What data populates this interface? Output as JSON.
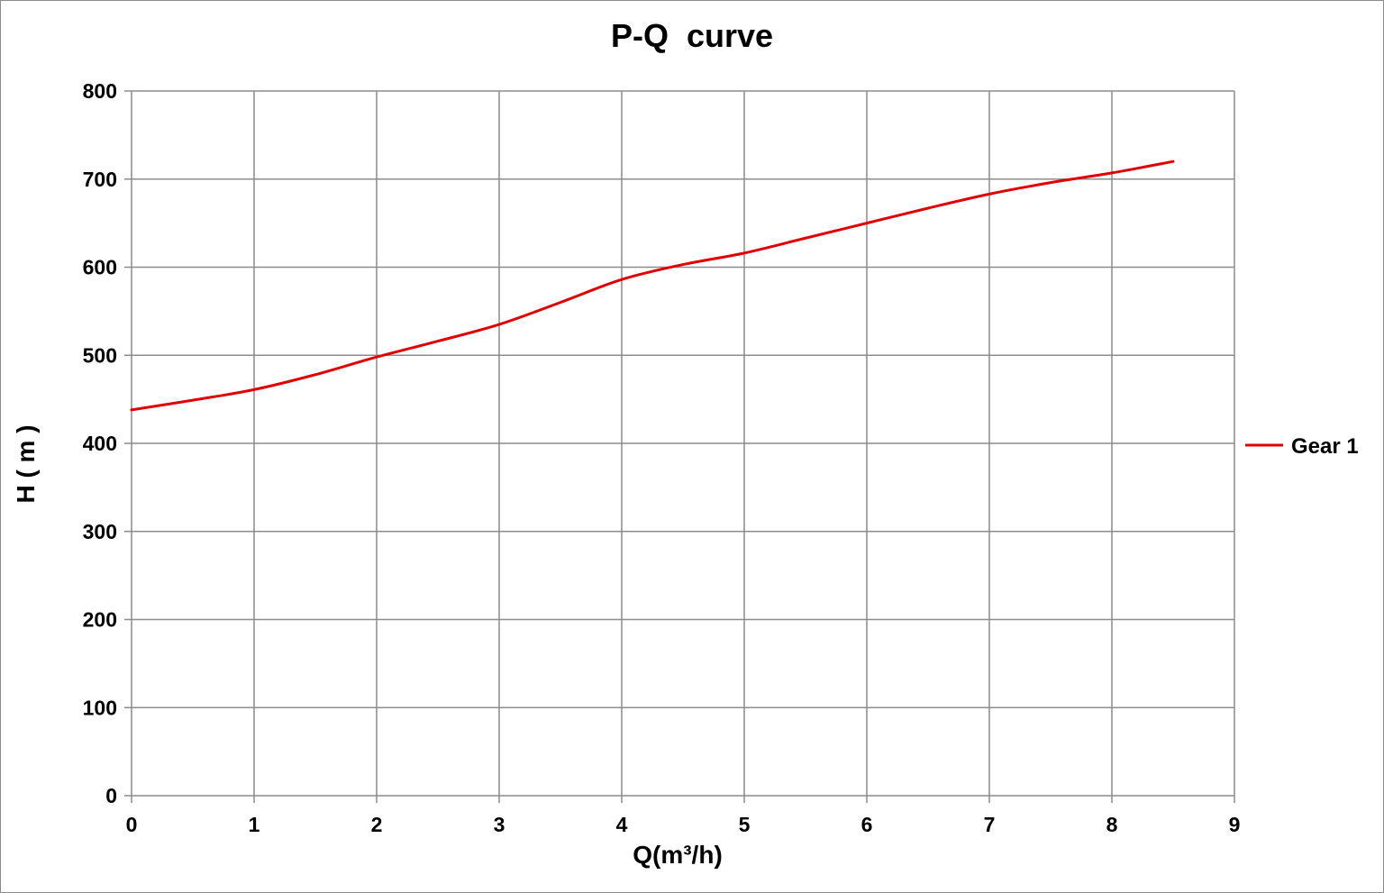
{
  "chart_data": {
    "type": "line",
    "title": "P-Q  curve",
    "xlabel": "Q(m³/h)",
    "ylabel": "H ( m )",
    "xlim": [
      0,
      9
    ],
    "ylim": [
      0,
      800
    ],
    "x_ticks": [
      "0",
      "1",
      "2",
      "3",
      "4",
      "5",
      "6",
      "7",
      "8",
      "9"
    ],
    "y_ticks": [
      "0",
      "100",
      "200",
      "300",
      "400",
      "500",
      "600",
      "700",
      "800"
    ],
    "grid": true,
    "legend_position": "right",
    "series": [
      {
        "name": "Gear 1",
        "color": "#e00000",
        "x": [
          0,
          0.5,
          1,
          1.5,
          2,
          2.5,
          3,
          3.5,
          4,
          4.5,
          5,
          5.5,
          6,
          6.5,
          7,
          7.5,
          8,
          8.5
        ],
        "y": [
          438,
          449,
          461,
          478,
          498,
          516,
          535,
          560,
          586,
          603,
          616,
          633,
          650,
          667,
          683,
          696,
          707,
          720
        ]
      }
    ]
  }
}
